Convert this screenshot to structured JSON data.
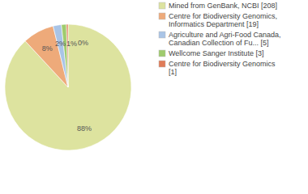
{
  "chart_data": {
    "type": "pie",
    "categories": [
      "Mined from GenBank, NCBI [208]",
      "Centre for Biodiversity Genomics, Informatics Department [19]",
      "Agriculture and Agri-Food Canada, Canadian Collection of Fu... [5]",
      "Wellcome Sanger Institute [3]",
      "Centre for Biodiversity Genomics [1]"
    ],
    "values": [
      88.1,
      8.05,
      2.12,
      1.27,
      0.42
    ],
    "value_labels": [
      "88%",
      "8%",
      "2%",
      "1%",
      "0%"
    ],
    "colors": [
      "#dde39f",
      "#eeaa7a",
      "#a9c4e6",
      "#9fcb6d",
      "#e07b57"
    ],
    "data_labels": true
  }
}
